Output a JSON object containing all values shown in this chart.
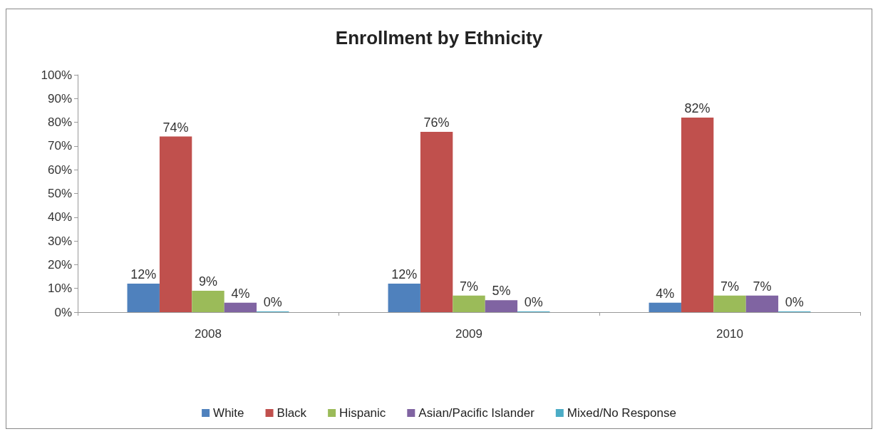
{
  "chart_data": {
    "type": "bar",
    "title": "Enrollment by Ethnicity",
    "categories": [
      "2008",
      "2009",
      "2010"
    ],
    "series": [
      {
        "name": "White",
        "color": "#4f81bd",
        "values": [
          12,
          12,
          4
        ],
        "value_labels": [
          "12%",
          "12%",
          "4%"
        ]
      },
      {
        "name": "Black",
        "color": "#c0504d",
        "values": [
          74,
          76,
          82
        ],
        "value_labels": [
          "74%",
          "76%",
          "82%"
        ]
      },
      {
        "name": "Hispanic",
        "color": "#9bbb59",
        "values": [
          9,
          7,
          7
        ],
        "value_labels": [
          "9%",
          "7%",
          "7%"
        ]
      },
      {
        "name": "Asian/Pacific Islander",
        "color": "#8064a2",
        "values": [
          4,
          5,
          7
        ],
        "value_labels": [
          "4%",
          "5%",
          "7%"
        ]
      },
      {
        "name": "Mixed/No Response",
        "color": "#4bacc6",
        "values": [
          0,
          0,
          0
        ],
        "value_labels": [
          "0%",
          "0%",
          "0%"
        ]
      }
    ],
    "ylim": [
      0,
      100
    ],
    "yticks": [
      {
        "value": 0,
        "label": "0%"
      },
      {
        "value": 10,
        "label": "10%"
      },
      {
        "value": 20,
        "label": "20%"
      },
      {
        "value": 30,
        "label": "30%"
      },
      {
        "value": 40,
        "label": "40%"
      },
      {
        "value": 50,
        "label": "50%"
      },
      {
        "value": 60,
        "label": "60%"
      },
      {
        "value": 70,
        "label": "70%"
      },
      {
        "value": 80,
        "label": "80%"
      },
      {
        "value": 90,
        "label": "90%"
      },
      {
        "value": 100,
        "label": "100%"
      }
    ],
    "grid": false,
    "legend": "bottom"
  }
}
